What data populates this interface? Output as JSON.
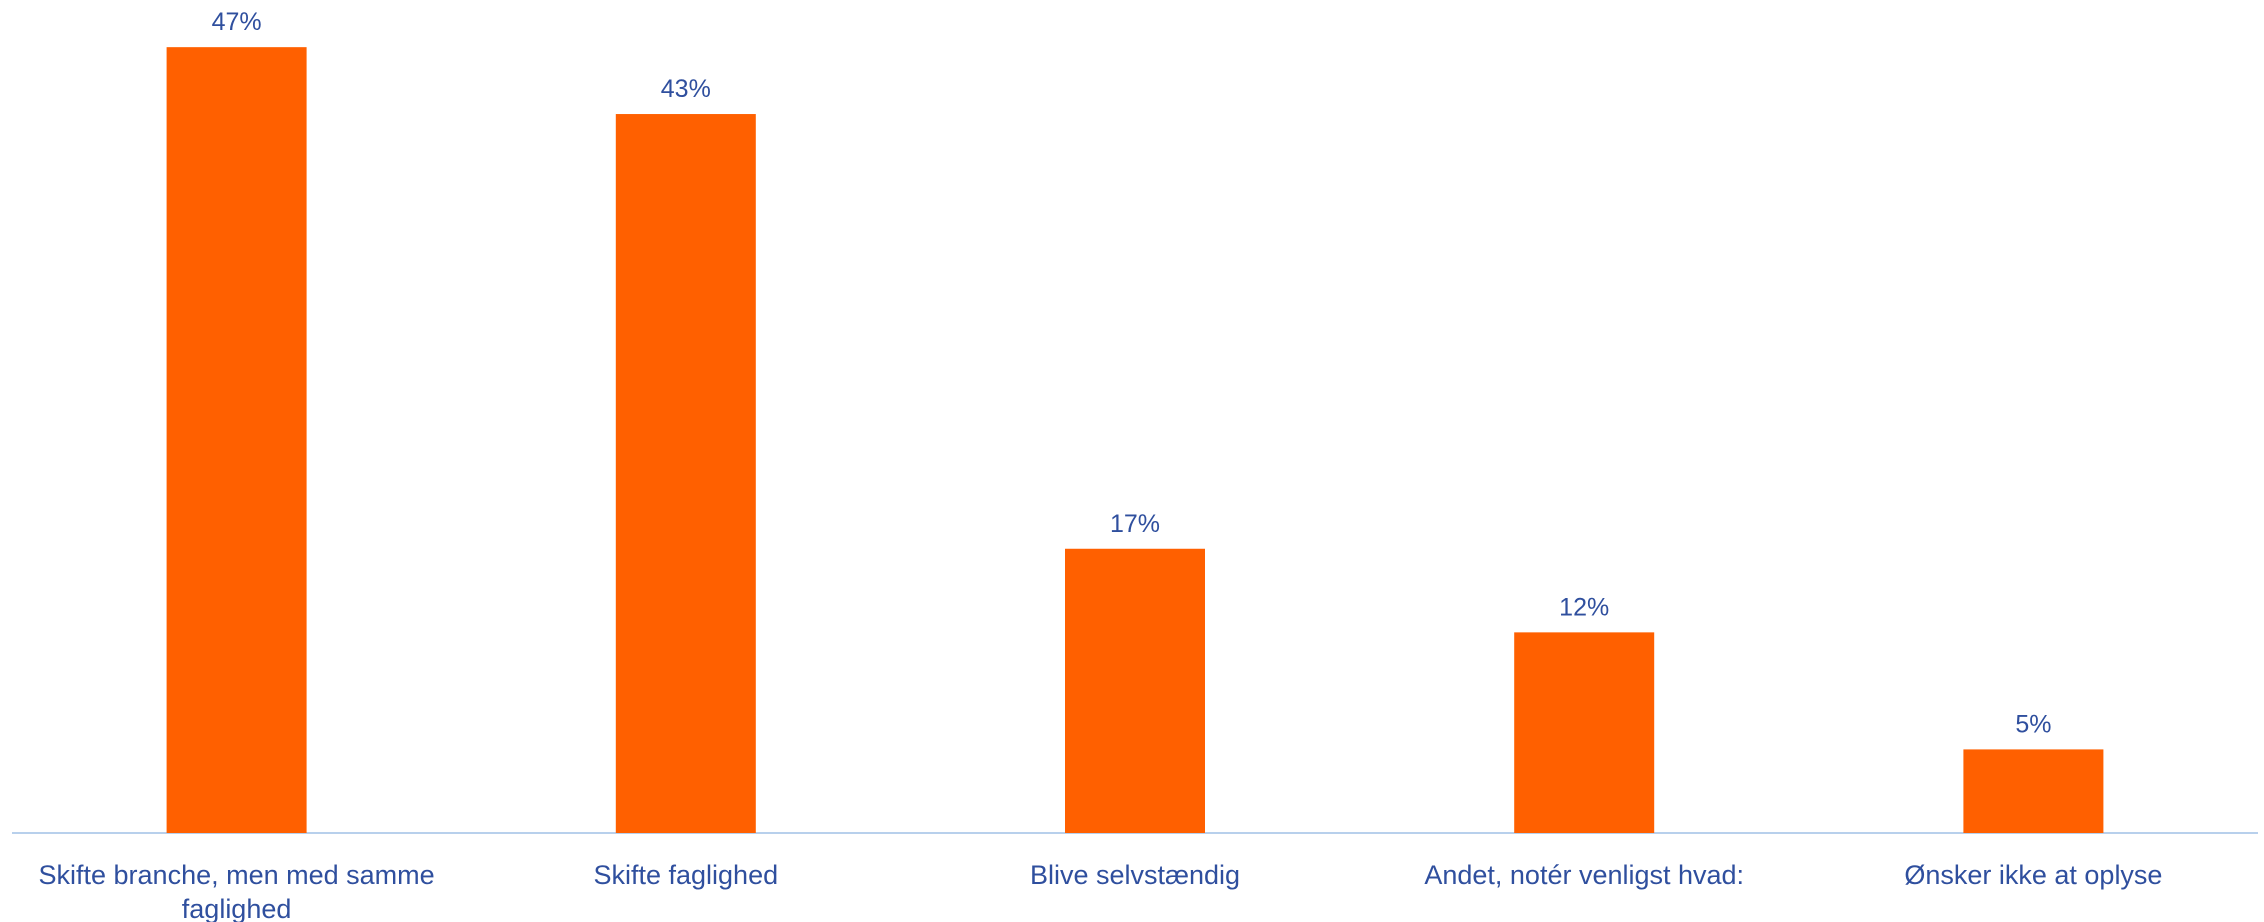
{
  "colors": {
    "bar": "#ff6000",
    "axis": "#b8d0ec",
    "text": "#2f4f9e",
    "background": "#ffffff"
  },
  "chart_data": {
    "type": "bar",
    "title": "",
    "xlabel": "",
    "ylabel": "",
    "ylim": [
      0,
      50
    ],
    "grid": false,
    "legend": "none",
    "categories": [
      "Skifte branche, men med samme faglighed",
      "Skifte faglighed",
      "Blive selvstændig",
      "Andet, notér venligst hvad:",
      "Ønsker ikke at oplyse"
    ],
    "category_label_lines": [
      [
        "Skifte branche, men med samme",
        "faglighed"
      ],
      [
        "Skifte faglighed"
      ],
      [
        "Blive selvstændig"
      ],
      [
        "Andet, notér venligst hvad:"
      ],
      [
        "Ønsker ikke at oplyse"
      ]
    ],
    "values": [
      47,
      43,
      17,
      12,
      5
    ],
    "value_labels": [
      "47%",
      "43%",
      "17%",
      "12%",
      "5%"
    ]
  }
}
